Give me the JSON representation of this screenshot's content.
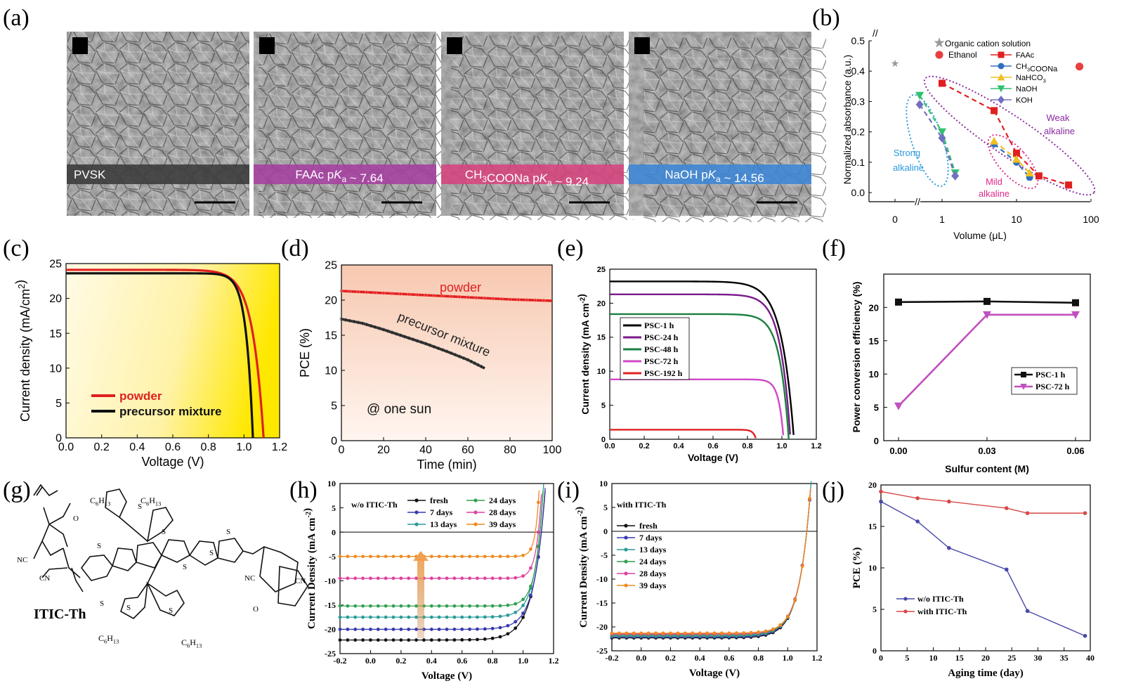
{
  "panels": {
    "a": {
      "label": "(a)",
      "images": [
        {
          "caption": "PVSK",
          "color": "#3a3a3a"
        },
        {
          "caption": "FAAc pKa ~ 7.64",
          "color": "#a540a0"
        },
        {
          "caption": "CH3COONa pKa ~ 9.24",
          "color": "#d6447e"
        },
        {
          "caption": "NaOH pKa ~ 14.56",
          "color": "#3d86d6"
        }
      ]
    },
    "g": {
      "label": "(g)",
      "molecule_name": "ITIC-Th",
      "atom_labels": {
        "O": "O",
        "NC": "NC",
        "CN": "CN",
        "S": "S",
        "C6H13": "C6H13"
      }
    }
  },
  "chart_data": [
    {
      "id": "b",
      "panel_label": "(b)",
      "type": "scatter",
      "xlabel": "Volume (μL)",
      "ylabel": "Normalized absorbance (a.u.)",
      "xscale": "log-with-break",
      "ylim": [
        -0.03,
        0.5
      ],
      "xticks": [
        "0",
        "1",
        "10",
        "100"
      ],
      "yticks": [
        "0.0",
        "0.1",
        "0.2",
        "0.3",
        "0.4",
        "0.5"
      ],
      "series": [
        {
          "name": "Organic cation solution",
          "marker": "star",
          "color": "#999999",
          "x": [
            0
          ],
          "y": [
            0.425
          ]
        },
        {
          "name": "Ethanol",
          "marker": "ball",
          "color": "#e84040",
          "x": [
            70
          ],
          "y": [
            0.415
          ]
        },
        {
          "name": "FAAc",
          "marker": "square",
          "color": "#e02020",
          "x": [
            1,
            5,
            10,
            20,
            50
          ],
          "y": [
            0.36,
            0.27,
            0.13,
            0.055,
            0.025
          ]
        },
        {
          "name": "CH3COONa",
          "marker": "circle",
          "color": "#3070c0",
          "x": [
            5,
            10,
            15
          ],
          "y": [
            0.16,
            0.1,
            0.05
          ]
        },
        {
          "name": "NaHCO3",
          "marker": "triangle-up",
          "color": "#f0c020",
          "x": [
            5,
            10,
            15
          ],
          "y": [
            0.17,
            0.11,
            0.065
          ]
        },
        {
          "name": "NaOH",
          "marker": "triangle-down",
          "color": "#30c070",
          "x": [
            0.5,
            1,
            1.5
          ],
          "y": [
            0.32,
            0.2,
            0.065
          ]
        },
        {
          "name": "KOH",
          "marker": "diamond",
          "color": "#7070c0",
          "x": [
            0.5,
            1,
            1.5
          ],
          "y": [
            0.29,
            0.18,
            0.055
          ]
        }
      ],
      "annotations": [
        "Strong",
        "alkaline",
        "Mild",
        "alkaline",
        "Weak",
        "alkaline"
      ]
    },
    {
      "id": "c",
      "panel_label": "(c)",
      "type": "line",
      "xlabel": "Voltage (V)",
      "ylabel": "Current density (mA/cm²)",
      "xlim": [
        0,
        1.2
      ],
      "ylim": [
        0,
        25
      ],
      "xticks": [
        "0.0",
        "0.2",
        "0.4",
        "0.6",
        "0.8",
        "1.0",
        "1.2"
      ],
      "yticks": [
        "0",
        "5",
        "10",
        "15",
        "20",
        "25"
      ],
      "series": [
        {
          "name": "powder",
          "color": "#e02020",
          "jsc": 24.1,
          "voc": 1.11,
          "n": 1.6
        },
        {
          "name": "precursor mixture",
          "color": "#111111",
          "jsc": 23.6,
          "voc": 1.05,
          "n": 2.6
        }
      ]
    },
    {
      "id": "d",
      "panel_label": "(d)",
      "type": "line",
      "xlabel": "Time (min)",
      "ylabel": "PCE (%)",
      "xlim": [
        0,
        100
      ],
      "ylim": [
        0,
        25
      ],
      "xticks": [
        "0",
        "20",
        "40",
        "60",
        "80",
        "100"
      ],
      "yticks": [
        "0",
        "5",
        "10",
        "15",
        "20",
        "25"
      ],
      "series": [
        {
          "name": "powder",
          "color": "#e02020",
          "x": [
            0,
            20,
            40,
            60,
            80,
            100
          ],
          "y": [
            21.3,
            21.0,
            20.7,
            20.4,
            20.1,
            19.9
          ]
        },
        {
          "name": "precursor mixture",
          "color": "#222222",
          "x": [
            0,
            10,
            20,
            30,
            40,
            50,
            60,
            68
          ],
          "y": [
            17.3,
            16.7,
            15.8,
            14.8,
            13.8,
            12.7,
            11.5,
            10.3
          ]
        }
      ],
      "annotations": [
        "powder",
        "precursor mixture",
        "@ one sun"
      ]
    },
    {
      "id": "e",
      "panel_label": "(e)",
      "type": "line",
      "xlabel": "Voltage (V)",
      "ylabel": "Current density (mA cm⁻²)",
      "xlim": [
        0,
        1.2
      ],
      "ylim": [
        0,
        25
      ],
      "xticks": [
        "0.0",
        "0.2",
        "0.4",
        "0.6",
        "0.8",
        "1.0",
        "1.2"
      ],
      "yticks": [
        "0",
        "5",
        "10",
        "15",
        "20",
        "25"
      ],
      "series": [
        {
          "name": "PSC-1 h",
          "color": "#000000",
          "jsc": 23.2,
          "voc": 1.07,
          "n": 1.4
        },
        {
          "name": "PSC-24 h",
          "color": "#7a1a8a",
          "jsc": 21.3,
          "voc": 1.05,
          "n": 1.7
        },
        {
          "name": "PSC-48 h",
          "color": "#1a8040",
          "jsc": 18.4,
          "voc": 1.04,
          "n": 1.9
        },
        {
          "name": "PSC-72 h",
          "color": "#d048c8",
          "jsc": 8.8,
          "voc": 1.01,
          "n": 3.5
        },
        {
          "name": "PSC-192 h",
          "color": "#e02020",
          "jsc": 1.4,
          "voc": 0.85,
          "n": 6
        }
      ]
    },
    {
      "id": "f",
      "panel_label": "(f)",
      "type": "line",
      "xlabel": "Sulfur content (M)",
      "ylabel": "Power conversion efficiency (%)",
      "ylim": [
        0,
        25
      ],
      "xticks": [
        "0.00",
        "0.03",
        "0.06"
      ],
      "yticks": [
        "0",
        "5",
        "10",
        "15",
        "20"
      ],
      "series": [
        {
          "name": "PSC-1 h",
          "color": "#111111",
          "x": [
            0,
            0.03,
            0.06
          ],
          "y": [
            20.8,
            20.9,
            20.7
          ]
        },
        {
          "name": "PSC-72 h",
          "color": "#c050c0",
          "x": [
            0,
            0.03,
            0.06
          ],
          "y": [
            5.2,
            18.9,
            18.9
          ]
        }
      ]
    },
    {
      "id": "h",
      "panel_label": "(h)",
      "type": "line",
      "xlabel": "Voltage (V)",
      "ylabel": "Current Density (mA cm⁻²)",
      "xlim": [
        -0.2,
        1.2
      ],
      "ylim": [
        -25,
        10
      ],
      "xticks": [
        "-0.2",
        "0.0",
        "0.2",
        "0.4",
        "0.6",
        "0.8",
        "1.0",
        "1.2"
      ],
      "yticks": [
        "-25",
        "-20",
        "-15",
        "-10",
        "-5",
        "0",
        "5",
        "10"
      ],
      "legend_title": "w/o ITIC-Th",
      "series": [
        {
          "name": "fresh",
          "color": "#111111",
          "jsc": 22.2,
          "voc": 1.12,
          "n": 1.3
        },
        {
          "name": "7 days",
          "color": "#3838b0",
          "jsc": 20.0,
          "voc": 1.12,
          "n": 1.5
        },
        {
          "name": "13 days",
          "color": "#2a9a9a",
          "jsc": 17.5,
          "voc": 1.11,
          "n": 1.8
        },
        {
          "name": "24 days",
          "color": "#30a050",
          "jsc": 15.2,
          "voc": 1.11,
          "n": 2.2
        },
        {
          "name": "28 days",
          "color": "#e040a0",
          "jsc": 9.5,
          "voc": 1.1,
          "n": 3
        },
        {
          "name": "39 days",
          "color": "#f08a20",
          "jsc": 5.0,
          "voc": 1.08,
          "n": 4
        }
      ]
    },
    {
      "id": "i",
      "panel_label": "(i)",
      "type": "line",
      "xlabel": "Voltage (V)",
      "ylabel": "Current Density (mA cm⁻²)",
      "xlim": [
        -0.2,
        1.2
      ],
      "ylim": [
        -25,
        10
      ],
      "xticks": [
        "-0.2",
        "0.0",
        "0.2",
        "0.4",
        "0.6",
        "0.8",
        "1.0",
        "1.2"
      ],
      "yticks": [
        "-25",
        "-20",
        "-15",
        "-10",
        "-5",
        "0",
        "5",
        "10"
      ],
      "legend_title": "with ITIC-Th",
      "series": [
        {
          "name": "fresh",
          "color": "#111111",
          "jsc": 22.3,
          "voc": 1.13,
          "n": 1.3
        },
        {
          "name": "7 days",
          "color": "#3838b0",
          "jsc": 22.1,
          "voc": 1.13,
          "n": 1.3
        },
        {
          "name": "13 days",
          "color": "#2a9a9a",
          "jsc": 21.9,
          "voc": 1.13,
          "n": 1.3
        },
        {
          "name": "24 days",
          "color": "#30a050",
          "jsc": 21.7,
          "voc": 1.13,
          "n": 1.35
        },
        {
          "name": "28 days",
          "color": "#e040a0",
          "jsc": 21.5,
          "voc": 1.13,
          "n": 1.35
        },
        {
          "name": "39 days",
          "color": "#f08a20",
          "jsc": 21.3,
          "voc": 1.13,
          "n": 1.4
        }
      ]
    },
    {
      "id": "j",
      "panel_label": "(j)",
      "type": "line",
      "xlabel": "Aging time (day)",
      "ylabel": "PCE (%)",
      "xlim": [
        0,
        40
      ],
      "ylim": [
        0,
        20
      ],
      "xticks": [
        "0",
        "5",
        "10",
        "15",
        "20",
        "25",
        "30",
        "35",
        "40"
      ],
      "yticks": [
        "0",
        "5",
        "10",
        "15",
        "20"
      ],
      "series": [
        {
          "name": "w/o ITIC-Th",
          "color": "#4848a8",
          "x": [
            0,
            7,
            13,
            24,
            28,
            39
          ],
          "y": [
            18.0,
            15.6,
            12.4,
            9.8,
            4.8,
            1.8
          ]
        },
        {
          "name": "with ITIC-Th",
          "color": "#d84848",
          "x": [
            0,
            7,
            13,
            24,
            28,
            39
          ],
          "y": [
            19.2,
            18.4,
            18.0,
            17.2,
            16.6,
            16.6
          ]
        }
      ]
    }
  ]
}
